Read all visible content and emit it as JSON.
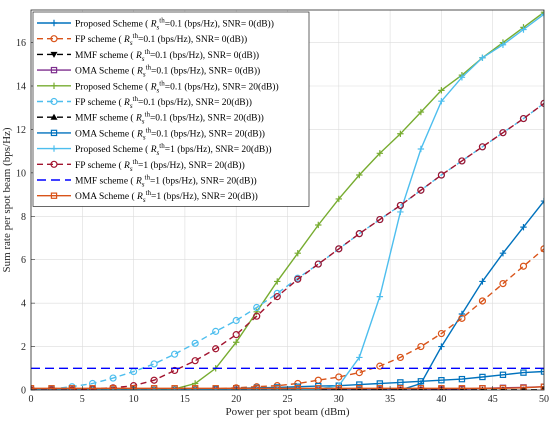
{
  "chart_data": {
    "type": "line",
    "xlabel": "Power per spot beam (dBm)",
    "ylabel": "Sum rate per spot beam (bps/Hz)",
    "xlim": [
      0,
      50
    ],
    "ylim": [
      0,
      17.5
    ],
    "xticks": [
      0,
      5,
      10,
      15,
      20,
      25,
      30,
      35,
      40,
      45,
      50
    ],
    "yticks": [
      0,
      2,
      4,
      6,
      8,
      10,
      12,
      14,
      16
    ],
    "grid": true,
    "legend_position": "top-left",
    "x": [
      0,
      2,
      4,
      6,
      8,
      10,
      12,
      14,
      16,
      18,
      20,
      22,
      24,
      26,
      28,
      30,
      32,
      34,
      36,
      38,
      40,
      42,
      44,
      46,
      48,
      50
    ],
    "series": [
      {
        "label": "Proposed Scheme ( ",
        "rs": "0.1",
        "snr": "0",
        "color": "#0072BD",
        "dash": "",
        "marker": "plus",
        "values": [
          0,
          0,
          0,
          0,
          0,
          0,
          0,
          0,
          0,
          0,
          0,
          0,
          0,
          0,
          0,
          0,
          0,
          0,
          0,
          0.3,
          2.0,
          3.5,
          5.0,
          6.3,
          7.5,
          8.7
        ]
      },
      {
        "label": "FP scheme ( ",
        "rs": "0.1",
        "snr": "0",
        "color": "#D95319",
        "dash": "6,4",
        "marker": "circle",
        "values": [
          0,
          0,
          0,
          0,
          0,
          0,
          0,
          0,
          0.02,
          0.05,
          0.1,
          0.15,
          0.2,
          0.3,
          0.45,
          0.6,
          0.8,
          1.1,
          1.5,
          2.0,
          2.6,
          3.3,
          4.1,
          4.9,
          5.7,
          6.5
        ]
      },
      {
        "label": "MMF scheme ( ",
        "rs": "0.1",
        "snr": "0",
        "color": "#000000",
        "dash": "6,4",
        "marker": "tri-down",
        "values": [
          0,
          0,
          0,
          0,
          0,
          0,
          0,
          0,
          0,
          0,
          0,
          0,
          0,
          0,
          0,
          0,
          0,
          0,
          0,
          0,
          0,
          0,
          0,
          0,
          0,
          0
        ]
      },
      {
        "label": "OMA Scheme ( ",
        "rs": "0.1",
        "snr": "0",
        "color": "#7E2F8E",
        "dash": "",
        "marker": "square",
        "values": [
          0,
          0,
          0,
          0,
          0,
          0,
          0,
          0,
          0,
          0,
          0,
          0,
          0,
          0,
          0,
          0,
          0,
          0,
          0,
          0,
          0.02,
          0.05,
          0.08,
          0.1,
          0.12,
          0.15
        ]
      },
      {
        "label": "Proposed Scheme ( ",
        "rs": "0.1",
        "snr": "20",
        "color": "#77AC30",
        "dash": "",
        "marker": "plus",
        "values": [
          0,
          0,
          0,
          0,
          0,
          0,
          0,
          0.05,
          0.3,
          1.0,
          2.2,
          3.6,
          5.0,
          6.3,
          7.6,
          8.8,
          9.9,
          10.9,
          11.8,
          12.8,
          13.8,
          14.5,
          15.3,
          16.0,
          16.7,
          17.4
        ]
      },
      {
        "label": "FP scheme ( ",
        "rs": "0.1",
        "snr": "20",
        "color": "#4DBEEE",
        "dash": "6,4",
        "marker": "circle",
        "values": [
          0,
          0.05,
          0.15,
          0.3,
          0.55,
          0.85,
          1.2,
          1.65,
          2.15,
          2.7,
          3.2,
          3.8,
          4.45,
          5.15,
          5.8,
          6.5,
          7.2,
          7.85,
          8.5,
          9.2,
          9.9,
          10.55,
          11.2,
          11.85,
          12.5,
          13.2
        ]
      },
      {
        "label": "MMF scheme ( ",
        "rs": "0.1",
        "snr": "20",
        "color": "#000000",
        "dash": "6,4",
        "marker": "tri-up",
        "values": [
          0,
          0,
          0,
          0,
          0,
          0,
          0,
          0,
          0,
          0,
          0,
          0,
          0,
          0,
          0,
          0,
          0,
          0,
          0,
          0,
          0,
          0,
          0,
          0,
          0,
          0
        ]
      },
      {
        "label": "OMA Scheme ( ",
        "rs": "0.1",
        "snr": "20",
        "color": "#0072BD",
        "dash": "",
        "marker": "square",
        "values": [
          0,
          0,
          0,
          0,
          0,
          0,
          0,
          0,
          0,
          0.05,
          0.08,
          0.1,
          0.12,
          0.15,
          0.18,
          0.2,
          0.25,
          0.3,
          0.35,
          0.4,
          0.45,
          0.5,
          0.6,
          0.7,
          0.8,
          0.85
        ]
      },
      {
        "label": "Proposed Scheme ( ",
        "rs": "1",
        "snr": "20",
        "color": "#4DBEEE",
        "dash": "",
        "marker": "plus",
        "values": [
          0,
          0,
          0,
          0,
          0,
          0,
          0,
          0,
          0,
          0,
          0,
          0,
          0,
          0,
          0.05,
          0.2,
          1.5,
          4.3,
          8.2,
          11.1,
          13.3,
          14.4,
          15.3,
          15.9,
          16.6,
          17.3
        ]
      },
      {
        "label": "FP scheme ( ",
        "rs": "1",
        "snr": "20",
        "color": "#A2142F",
        "dash": "6,4",
        "marker": "circle",
        "values": [
          0,
          0,
          0,
          0.05,
          0.1,
          0.2,
          0.45,
          0.9,
          1.35,
          1.9,
          2.55,
          3.4,
          4.3,
          5.1,
          5.8,
          6.5,
          7.2,
          7.85,
          8.5,
          9.2,
          9.9,
          10.55,
          11.2,
          11.85,
          12.5,
          13.2
        ]
      },
      {
        "label": "MMF scheme ( ",
        "rs": "1",
        "snr": "20",
        "color": "#0000FF",
        "dash": "9,5",
        "marker": "none",
        "values": [
          1,
          1,
          1,
          1,
          1,
          1,
          1,
          1,
          1,
          1,
          1,
          1,
          1,
          1,
          1,
          1,
          1,
          1,
          1,
          1,
          1,
          1,
          1,
          1,
          1,
          1
        ]
      },
      {
        "label": "OMA Scheme ( ",
        "rs": "1",
        "snr": "20",
        "color": "#D95319",
        "dash": "",
        "marker": "square",
        "values": [
          0.08,
          0.08,
          0.08,
          0.08,
          0.08,
          0.08,
          0.08,
          0.08,
          0.08,
          0.08,
          0.08,
          0.08,
          0.08,
          0.08,
          0.08,
          0.08,
          0.08,
          0.08,
          0.08,
          0.08,
          0.08,
          0.08,
          0.08,
          0.08,
          0.1,
          0.15
        ]
      }
    ],
    "legend_suffix": " (bps/Hz), SNR= ",
    "legend_unit": "(dB))"
  }
}
